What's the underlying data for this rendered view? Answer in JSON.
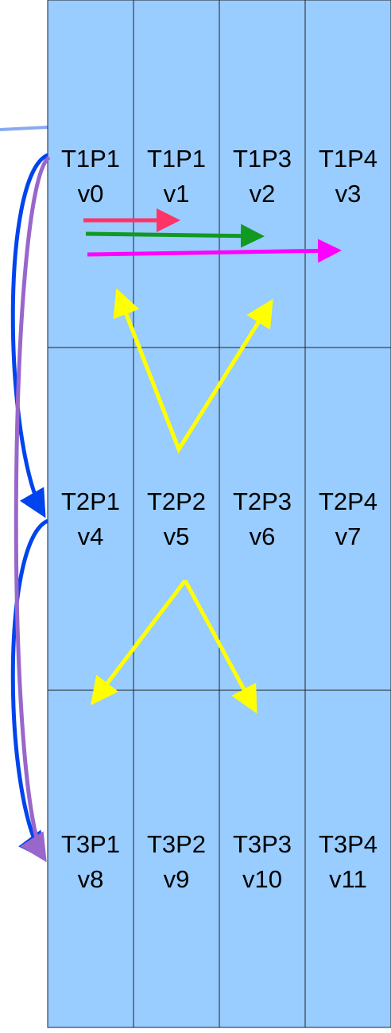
{
  "cells": [
    {
      "title": "T1P1",
      "var": "v0"
    },
    {
      "title": "T1P1",
      "var": "v1"
    },
    {
      "title": "T1P3",
      "var": "v2"
    },
    {
      "title": "T1P4",
      "var": "v3"
    },
    {
      "title": "T2P1",
      "var": "v4"
    },
    {
      "title": "T2P2",
      "var": "v5"
    },
    {
      "title": "T2P3",
      "var": "v6"
    },
    {
      "title": "T2P4",
      "var": "v7"
    },
    {
      "title": "T3P1",
      "var": "v8"
    },
    {
      "title": "T3P2",
      "var": "v9"
    },
    {
      "title": "T3P3",
      "var": "v10"
    },
    {
      "title": "T3P4",
      "var": "v11"
    }
  ]
}
